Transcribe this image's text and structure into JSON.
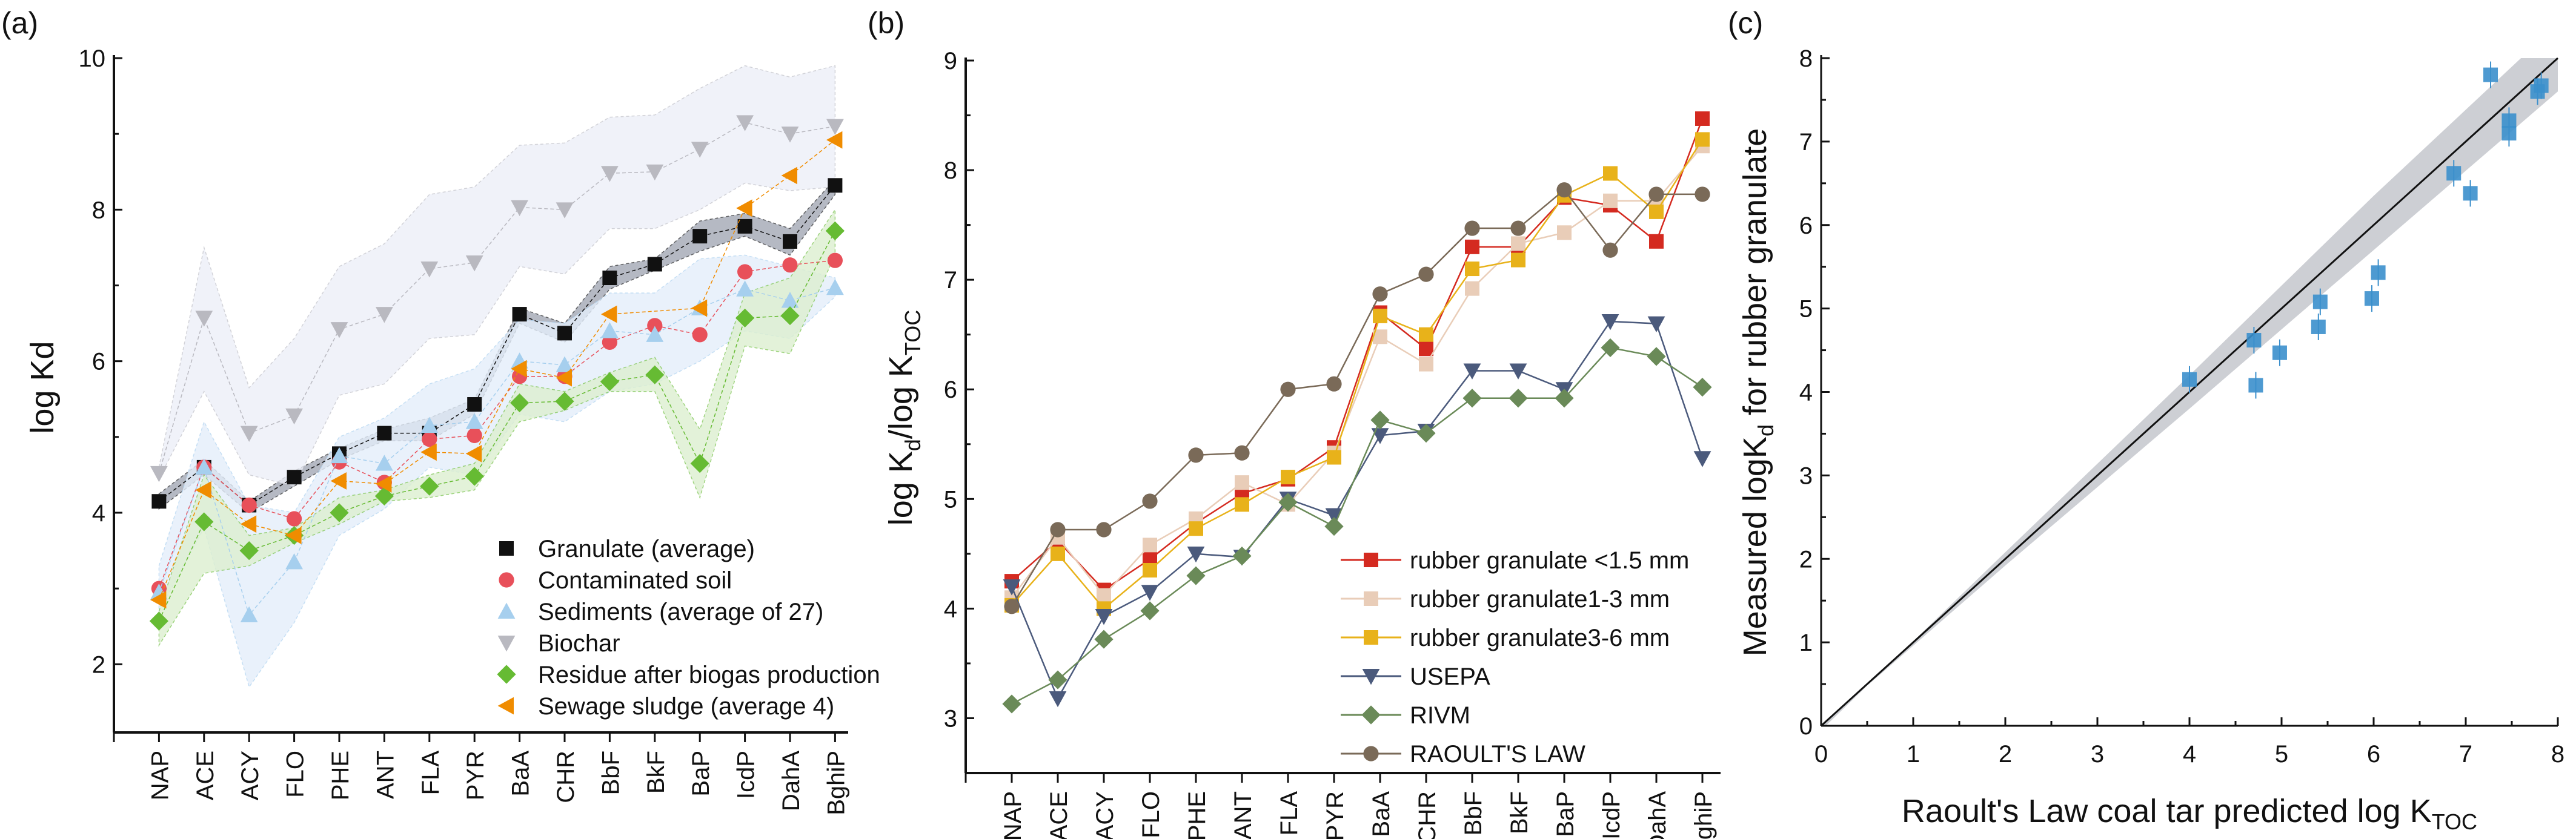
{
  "chart_data": [
    {
      "panel_label": "(a)",
      "type": "line",
      "ylabel": "log Kd",
      "xlabel": "",
      "ylim": [
        1.1,
        10
      ],
      "yticks": [
        2,
        4,
        6,
        8,
        10
      ],
      "grid": false,
      "legend_position": "bottom-right",
      "categories": [
        "NAP",
        "ACE",
        "ACY",
        "FLO",
        "PHE",
        "ANT",
        "FLA",
        "PYR",
        "BaA",
        "CHR",
        "BbF",
        "BkF",
        "BaP",
        "IcdP",
        "DahA",
        "BghiP"
      ],
      "series": [
        {
          "name": "Granulate (average)",
          "marker": "square",
          "color": "#111111",
          "band_color": "#a3a8b4",
          "values": [
            4.15,
            4.6,
            4.1,
            4.47,
            4.78,
            5.05,
            5.05,
            5.43,
            6.62,
            6.37,
            7.1,
            7.28,
            7.65,
            7.78,
            7.58,
            8.32
          ],
          "band_upper": [
            4.25,
            4.7,
            4.15,
            4.55,
            4.85,
            5.1,
            5.25,
            5.5,
            6.7,
            6.5,
            7.25,
            7.35,
            7.85,
            7.95,
            7.75,
            8.4
          ],
          "band_lower": [
            4.05,
            4.5,
            4.0,
            4.35,
            4.7,
            4.95,
            4.95,
            5.3,
            6.5,
            6.25,
            6.95,
            7.2,
            7.45,
            7.65,
            7.4,
            8.2
          ]
        },
        {
          "name": "Contaminated soil",
          "marker": "circle",
          "color": "#e8505a",
          "values": [
            3.0,
            4.6,
            4.1,
            3.92,
            4.67,
            4.4,
            4.97,
            5.02,
            5.8,
            5.8,
            6.25,
            6.47,
            6.35,
            7.18,
            7.27,
            7.33
          ]
        },
        {
          "name": "Sediments (average of 27)",
          "marker": "triangle-up",
          "color": "#a6cfee",
          "band_color": "#e4eefa",
          "values": [
            2.95,
            4.6,
            2.65,
            3.35,
            4.75,
            4.65,
            5.15,
            5.2,
            6.0,
            5.95,
            6.4,
            6.35,
            6.7,
            6.95,
            6.8,
            6.97
          ],
          "band_upper": [
            3.3,
            5.2,
            4.1,
            4.0,
            5.0,
            5.25,
            5.7,
            5.9,
            6.55,
            6.5,
            6.9,
            6.9,
            7.35,
            7.4,
            7.25,
            7.1
          ],
          "band_lower": [
            2.7,
            3.8,
            1.7,
            2.55,
            3.7,
            4.05,
            4.6,
            4.5,
            5.3,
            5.2,
            5.6,
            5.7,
            6.0,
            6.4,
            6.3,
            6.85
          ]
        },
        {
          "name": "Biochar",
          "marker": "triangle-down",
          "color": "#b9b9c0",
          "band_color": "#eceff7",
          "values": [
            4.52,
            6.57,
            5.05,
            5.28,
            6.42,
            6.62,
            7.22,
            7.3,
            8.03,
            8.0,
            8.48,
            8.5,
            8.8,
            9.15,
            9.0,
            9.1
          ],
          "band_upper": [
            4.6,
            7.5,
            5.65,
            6.3,
            7.25,
            7.55,
            8.2,
            8.3,
            8.85,
            8.88,
            9.22,
            9.25,
            9.6,
            9.9,
            9.75,
            9.9
          ],
          "band_lower": [
            4.45,
            5.6,
            4.5,
            4.35,
            5.55,
            5.7,
            6.3,
            6.35,
            7.25,
            7.15,
            7.75,
            7.75,
            8.0,
            8.35,
            8.25,
            8.3
          ]
        },
        {
          "name": "Residue after biogas production",
          "marker": "diamond",
          "color": "#66bb33",
          "band_color": "#dcefd0",
          "values": [
            2.57,
            3.88,
            3.5,
            3.7,
            4.0,
            4.22,
            4.35,
            4.48,
            5.45,
            5.47,
            5.73,
            5.82,
            4.65,
            6.57,
            6.6,
            7.72
          ],
          "band_upper": [
            2.7,
            4.5,
            3.7,
            3.8,
            4.2,
            4.3,
            4.5,
            4.65,
            5.7,
            5.6,
            5.85,
            6.05,
            5.1,
            6.9,
            7.1,
            8.0
          ],
          "band_lower": [
            2.25,
            3.2,
            3.3,
            3.6,
            3.85,
            4.15,
            4.2,
            4.3,
            5.2,
            5.35,
            5.6,
            5.6,
            4.2,
            6.2,
            6.1,
            7.4
          ]
        },
        {
          "name": "Sewage sludge (average 4)",
          "marker": "triangle-left",
          "color": "#f08c00",
          "values": [
            2.85,
            4.3,
            3.85,
            3.7,
            4.42,
            4.38,
            4.8,
            4.78,
            5.9,
            5.78,
            6.62,
            null,
            6.7,
            8.02,
            8.45,
            8.92
          ]
        }
      ]
    },
    {
      "panel_label": "(b)",
      "type": "line",
      "ylabel": "log K",
      "ylabel_sub_1": "d",
      "ylabel_mid": "/log K",
      "ylabel_sub_2": "TOC",
      "ylim": [
        2.5,
        9
      ],
      "yticks": [
        3,
        4,
        5,
        6,
        7,
        8,
        9
      ],
      "grid": false,
      "legend_position": "bottom-right",
      "categories": [
        "NAP",
        "ACE",
        "ACY",
        "FLO",
        "PHE",
        "ANT",
        "FLA",
        "PYR",
        "BaA",
        "CHR",
        "BbF",
        "BkF",
        "BaP",
        "IcdP",
        "DahA",
        "BghiP"
      ],
      "series": [
        {
          "name": "rubber granulate <1.5 mm",
          "marker": "square",
          "color": "#d42a20",
          "values": [
            4.25,
            4.62,
            4.17,
            4.45,
            4.78,
            5.05,
            5.18,
            5.47,
            6.7,
            6.37,
            7.3,
            7.3,
            7.75,
            7.68,
            7.35,
            8.47
          ]
        },
        {
          "name": "rubber granulate1-3 mm",
          "marker": "square",
          "color": "#e9cdb8",
          "values": [
            4.1,
            4.65,
            4.12,
            4.58,
            4.82,
            5.15,
            4.95,
            5.42,
            6.48,
            6.23,
            6.92,
            7.33,
            7.43,
            7.72,
            7.72,
            8.22
          ]
        },
        {
          "name": "rubber granulate3-6 mm",
          "marker": "square",
          "color": "#e8b21a",
          "values": [
            4.03,
            4.5,
            4.0,
            4.35,
            4.73,
            4.95,
            5.2,
            5.38,
            6.67,
            6.5,
            7.1,
            7.18,
            7.77,
            7.97,
            7.62,
            8.28
          ]
        },
        {
          "name": "USEPA",
          "marker": "triangle-down",
          "color": "#4b5a7c",
          "values": [
            4.2,
            3.18,
            3.93,
            4.15,
            4.5,
            4.47,
            5.0,
            4.85,
            5.58,
            5.62,
            6.17,
            6.17,
            6.0,
            6.62,
            6.6,
            5.37
          ]
        },
        {
          "name": "RIVM",
          "marker": "diamond",
          "color": "#6a8a58",
          "values": [
            3.13,
            3.35,
            3.72,
            3.98,
            4.3,
            4.48,
            4.97,
            4.75,
            5.72,
            5.6,
            5.92,
            5.92,
            5.92,
            6.38,
            6.3,
            6.02
          ]
        },
        {
          "name": "RAOULT'S LAW",
          "marker": "circle",
          "color": "#7a6a58",
          "values": [
            4.02,
            4.72,
            4.72,
            4.98,
            5.4,
            5.42,
            6.0,
            6.05,
            6.87,
            7.05,
            7.47,
            7.47,
            7.82,
            7.27,
            7.78,
            7.78
          ]
        }
      ]
    },
    {
      "panel_label": "(c)",
      "type": "scatter",
      "xlabel": "Raoult's Law coal tar predicted log K",
      "xlabel_sub": "TOC",
      "ylabel": "Measured logK",
      "ylabel_sub": "d",
      "ylabel_rest": " for rubber granulate",
      "xlim": [
        0,
        8
      ],
      "ylim": [
        0,
        8
      ],
      "xticks": [
        0,
        1,
        2,
        3,
        4,
        5,
        6,
        7,
        8
      ],
      "yticks": [
        0,
        1,
        2,
        3,
        4,
        5,
        6,
        7,
        8
      ],
      "grid": false,
      "marker_color": "#3b8fcc",
      "fit_line": {
        "slope": 1,
        "intercept": 0,
        "color": "#111111",
        "band_color": "#c8cacf"
      },
      "points": [
        {
          "x": 4.0,
          "y": 4.15
        },
        {
          "x": 4.7,
          "y": 4.62
        },
        {
          "x": 4.72,
          "y": 4.08
        },
        {
          "x": 4.98,
          "y": 4.47
        },
        {
          "x": 5.4,
          "y": 4.78
        },
        {
          "x": 5.42,
          "y": 5.08
        },
        {
          "x": 5.98,
          "y": 5.12
        },
        {
          "x": 6.05,
          "y": 5.43
        },
        {
          "x": 6.87,
          "y": 6.62
        },
        {
          "x": 7.05,
          "y": 6.38
        },
        {
          "x": 7.27,
          "y": 7.8
        },
        {
          "x": 7.47,
          "y": 7.25
        },
        {
          "x": 7.47,
          "y": 7.1
        },
        {
          "x": 7.78,
          "y": 7.6
        },
        {
          "x": 7.82,
          "y": 7.67
        }
      ]
    }
  ]
}
